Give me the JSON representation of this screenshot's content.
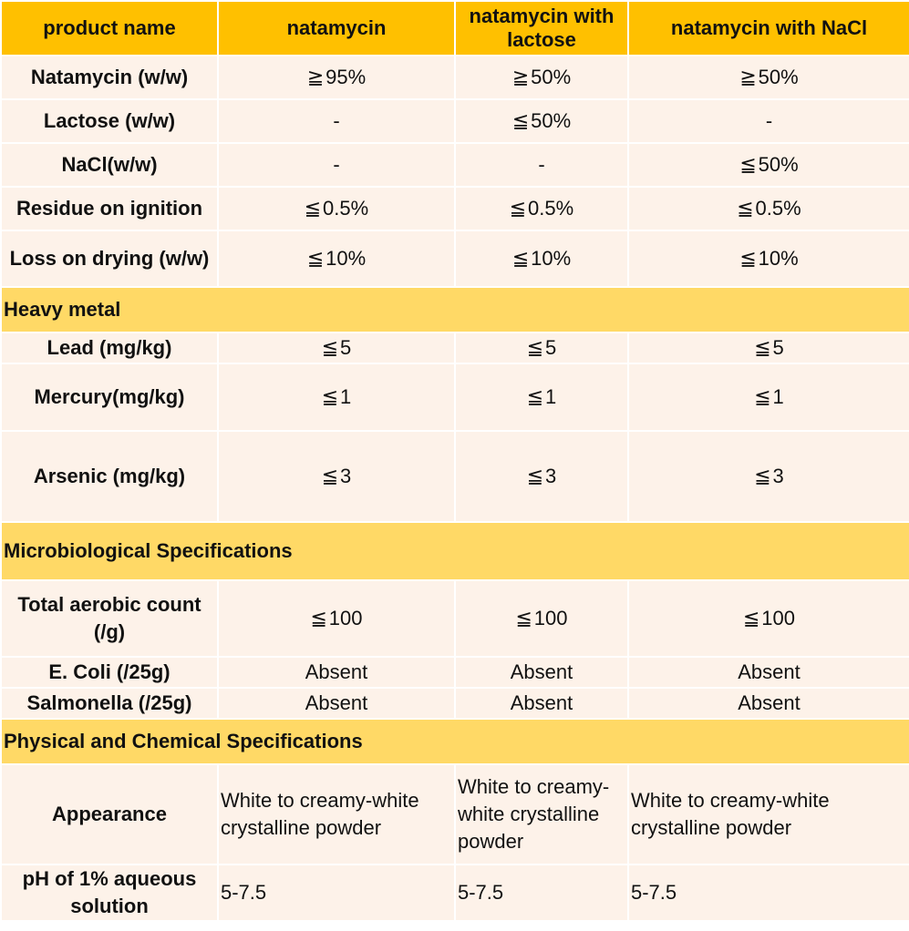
{
  "header": [
    "product name",
    "natamycin",
    "natamycin with lactose",
    "natamycin with NaCl"
  ],
  "composition_rows": [
    {
      "label": "Natamycin (w/w)",
      "values": [
        "≧ 95%",
        "≧ 50%",
        "≧ 50%"
      ]
    },
    {
      "label": "Lactose (w/w)",
      "values": [
        "-",
        "≦ 50%",
        "-"
      ]
    },
    {
      "label": "NaCl(w/w)",
      "values": [
        "-",
        "-",
        "≦ 50%"
      ]
    },
    {
      "label": "Residue on ignition",
      "values": [
        "≦ 0.5%",
        "≦ 0.5%",
        "≦ 0.5%"
      ]
    },
    {
      "label": "Loss on drying (w/w)",
      "values": [
        "≦ 10%",
        "≦ 10%",
        "≦ 10%"
      ]
    }
  ],
  "heavy_metal": {
    "title": "Heavy metal",
    "rows": [
      {
        "label": "Lead (mg/kg)",
        "values": [
          "≦ 5",
          "≦ 5",
          "≦ 5"
        ]
      },
      {
        "label": "Mercury(mg/kg)",
        "values": [
          "≦ 1",
          "≦ 1",
          "≦ 1"
        ]
      },
      {
        "label": "Arsenic (mg/kg)",
        "values": [
          "≦ 3",
          "≦ 3",
          "≦ 3"
        ]
      }
    ]
  },
  "microbiological": {
    "title": "Microbiological Specifications",
    "rows": [
      {
        "label": "Total aerobic count (/g)",
        "values": [
          "≦ 100",
          "≦ 100",
          "≦ 100"
        ]
      },
      {
        "label": "E. Coli (/25g)",
        "values": [
          "Absent",
          "Absent",
          "Absent"
        ]
      },
      {
        "label": "Salmonella (/25g)",
        "values": [
          "Absent",
          "Absent",
          "Absent"
        ]
      }
    ]
  },
  "physical_chemical": {
    "title": "Physical and Chemical Specifications",
    "rows": [
      {
        "label": "Appearance",
        "values": [
          "White to creamy-white crystalline powder",
          "White to creamy-white crystalline powder",
          "White to creamy-white crystalline powder"
        ]
      },
      {
        "label": "pH of 1% aqueous solution",
        "values": [
          "5-7.5",
          "5-7.5",
          "5-7.5"
        ]
      }
    ]
  }
}
